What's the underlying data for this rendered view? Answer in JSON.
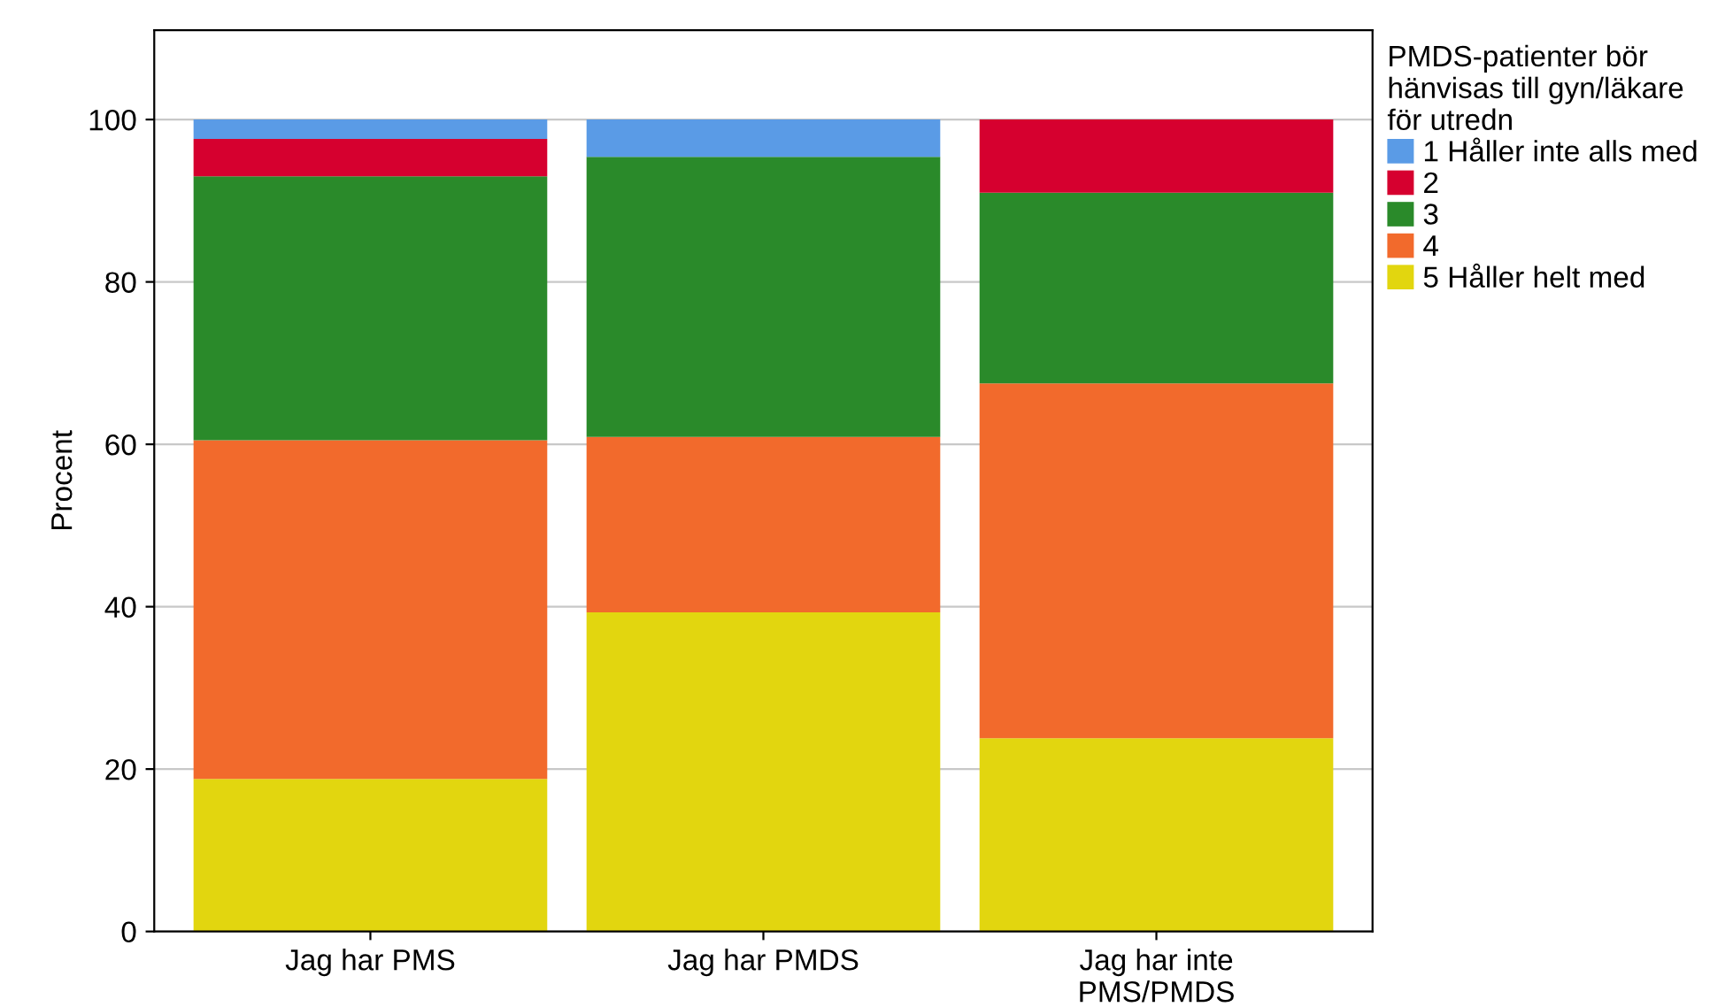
{
  "chart_data": {
    "type": "bar",
    "stacked": true,
    "ylabel": "Procent",
    "legend_title": "PMDS-patienter bör\nhänvisas till gyn/läkare\nför utredn",
    "categories": [
      "Jag har PMS",
      "Jag har PMDS",
      "Jag har inte\nPMS/PMDS"
    ],
    "series": [
      {
        "name": "5 Håller helt med",
        "color": "#e2d60f",
        "values": [
          18.8,
          39.3,
          23.8
        ]
      },
      {
        "name": "4",
        "color": "#f26a2c",
        "values": [
          41.7,
          21.6,
          43.7
        ]
      },
      {
        "name": "3",
        "color": "#2a8a2a",
        "values": [
          32.5,
          34.5,
          23.5
        ]
      },
      {
        "name": "2",
        "color": "#d6002f",
        "values": [
          4.6,
          0,
          9.0
        ]
      },
      {
        "name": "1 Håller inte alls med",
        "color": "#5a9be6",
        "values": [
          2.4,
          4.6,
          0
        ]
      }
    ],
    "ylim": [
      0,
      111
    ],
    "yticks": [
      0,
      20,
      40,
      60,
      80,
      100
    ],
    "grid": "y",
    "legend": "top right"
  }
}
